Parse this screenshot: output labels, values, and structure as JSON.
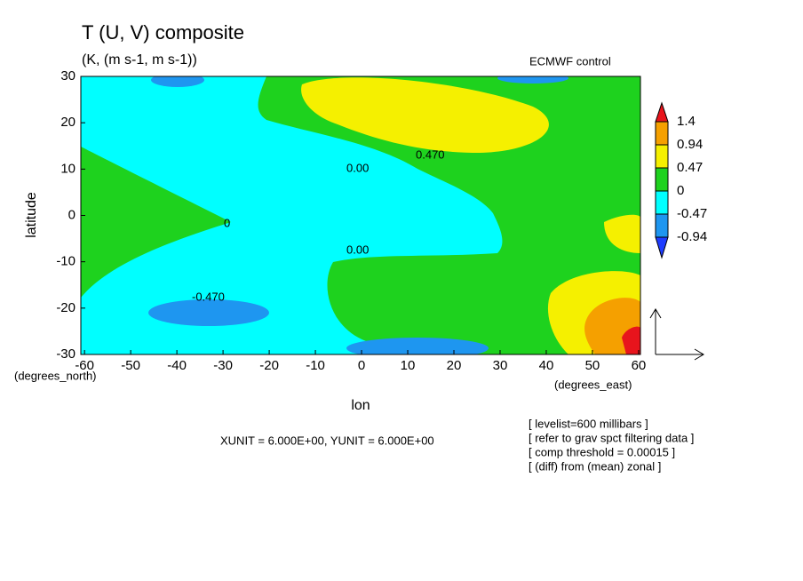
{
  "chart_data": {
    "type": "contour",
    "title": "T (U, V) composite",
    "subtitle": "(K, (m s-1, m s-1))",
    "source": "ECMWF control",
    "ylabel": "latitude",
    "xlabel": "lon",
    "yunit": "(degrees_north)",
    "xunit": "(degrees_east)",
    "vector_scale": "XUNIT = 6.000E+00, YUNIT = 6.000E+00",
    "notes": [
      "[ levelist=600 millibars ]",
      "[ refer to grav spct filtering data ]",
      "[ comp threshold = 0.00015 ]",
      "[ (diff) from (mean) zonal ]"
    ],
    "xlim": [
      -60.8,
      60.4
    ],
    "ylim": [
      -30,
      30
    ],
    "xticks": [
      -60,
      -50,
      -40,
      -30,
      -20,
      -10,
      0,
      10,
      20,
      30,
      40,
      50,
      60
    ],
    "yticks": [
      -30,
      -20,
      -10,
      0,
      10,
      20,
      30
    ],
    "levels": [
      -0.94,
      -0.47,
      0,
      0.47,
      0.94,
      1.4
    ],
    "level_labels": [
      "-0.94",
      "-0.47",
      "0",
      "0.47",
      "0.94",
      "1.4"
    ],
    "colors": [
      "#1e3cff",
      "#1e96f0",
      "#00ffff",
      "#1ed21e",
      "#f5f000",
      "#f5a000",
      "#e8141c"
    ],
    "contour_labels": [
      "0.470",
      "0.00",
      "0",
      "0.00",
      "-0.470"
    ]
  }
}
